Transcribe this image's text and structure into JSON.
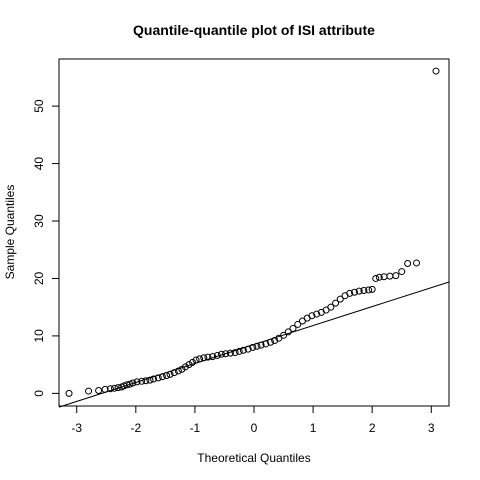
{
  "chart_data": {
    "type": "scatter",
    "title": "Quantile-quantile plot of ISI attribute",
    "xlabel": "Theoretical Quantiles",
    "ylabel": "Sample Quantiles",
    "xlim": [
      -3.3,
      3.3
    ],
    "ylim": [
      -2.2,
      58.2
    ],
    "xticks": [
      -3,
      -2,
      -1,
      0,
      1,
      2,
      3
    ],
    "yticks": [
      0,
      10,
      20,
      30,
      40,
      50
    ],
    "grid": false,
    "reference_line": {
      "intercept": 8.5,
      "slope": 3.3
    },
    "points": [
      [
        -3.13,
        0.0
      ],
      [
        -2.8,
        0.4
      ],
      [
        -2.63,
        0.5
      ],
      [
        -2.52,
        0.7
      ],
      [
        -2.43,
        0.8
      ],
      [
        -2.36,
        0.9
      ],
      [
        -2.3,
        1.0
      ],
      [
        -2.24,
        1.1
      ],
      [
        -2.2,
        1.3
      ],
      [
        -2.15,
        1.5
      ],
      [
        -2.1,
        1.6
      ],
      [
        -2.05,
        1.8
      ],
      [
        -1.98,
        2.0
      ],
      [
        -1.9,
        2.1
      ],
      [
        -1.83,
        2.2
      ],
      [
        -1.76,
        2.3
      ],
      [
        -1.7,
        2.5
      ],
      [
        -1.62,
        2.7
      ],
      [
        -1.55,
        2.9
      ],
      [
        -1.48,
        3.1
      ],
      [
        -1.42,
        3.3
      ],
      [
        -1.35,
        3.6
      ],
      [
        -1.28,
        3.9
      ],
      [
        -1.22,
        4.2
      ],
      [
        -1.16,
        4.6
      ],
      [
        -1.1,
        5.0
      ],
      [
        -1.04,
        5.4
      ],
      [
        -0.98,
        5.8
      ],
      [
        -0.92,
        6.0
      ],
      [
        -0.85,
        6.2
      ],
      [
        -0.78,
        6.3
      ],
      [
        -0.7,
        6.4
      ],
      [
        -0.62,
        6.6
      ],
      [
        -0.55,
        6.8
      ],
      [
        -0.48,
        6.9
      ],
      [
        -0.4,
        7.0
      ],
      [
        -0.32,
        7.1
      ],
      [
        -0.25,
        7.3
      ],
      [
        -0.18,
        7.5
      ],
      [
        -0.1,
        7.7
      ],
      [
        -0.02,
        8.0
      ],
      [
        0.05,
        8.2
      ],
      [
        0.12,
        8.4
      ],
      [
        0.2,
        8.6
      ],
      [
        0.28,
        8.9
      ],
      [
        0.35,
        9.2
      ],
      [
        0.42,
        9.6
      ],
      [
        0.5,
        10.1
      ],
      [
        0.58,
        10.7
      ],
      [
        0.66,
        11.3
      ],
      [
        0.74,
        12.0
      ],
      [
        0.82,
        12.6
      ],
      [
        0.9,
        13.1
      ],
      [
        0.98,
        13.5
      ],
      [
        1.06,
        13.8
      ],
      [
        1.14,
        14.1
      ],
      [
        1.22,
        14.5
      ],
      [
        1.3,
        15.0
      ],
      [
        1.38,
        15.7
      ],
      [
        1.46,
        16.4
      ],
      [
        1.54,
        17.0
      ],
      [
        1.62,
        17.4
      ],
      [
        1.7,
        17.6
      ],
      [
        1.78,
        17.8
      ],
      [
        1.86,
        17.9
      ],
      [
        1.94,
        18.0
      ],
      [
        2.0,
        18.1
      ],
      [
        2.06,
        20.0
      ],
      [
        2.12,
        20.2
      ],
      [
        2.2,
        20.3
      ],
      [
        2.3,
        20.4
      ],
      [
        2.4,
        20.5
      ],
      [
        2.5,
        21.2
      ],
      [
        2.6,
        22.6
      ],
      [
        2.75,
        22.7
      ],
      [
        3.08,
        56.1
      ]
    ]
  }
}
